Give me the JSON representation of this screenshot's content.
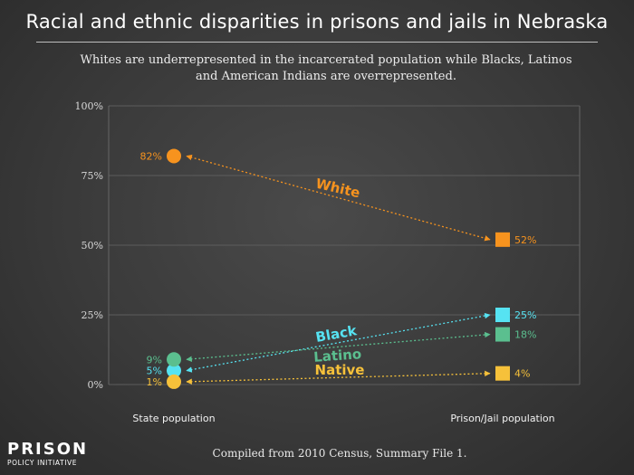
{
  "title": "Racial and ethnic disparities in prisons and jails in Nebraska",
  "subtitle": "Whites are underrepresented in the incarcerated population while Blacks, Latinos and American Indians are overrepresented.",
  "footer": "Compiled from 2010 Census, Summary File 1.",
  "logo": {
    "line1": "PRISON",
    "line2": "POLICY INITIATIVE"
  },
  "chart_data": {
    "type": "scatter",
    "categories": [
      "State population",
      "Prison/Jail population"
    ],
    "y_ticks": [
      "0%",
      "25%",
      "50%",
      "75%",
      "100%"
    ],
    "ylim": [
      0,
      100
    ],
    "grid": true,
    "series": [
      {
        "name": "White",
        "color": "#f7931e",
        "values": [
          82,
          52
        ],
        "labels": [
          "82%",
          "52%"
        ]
      },
      {
        "name": "Black",
        "color": "#56e3f2",
        "values": [
          5,
          25
        ],
        "labels": [
          "5%",
          "25%"
        ]
      },
      {
        "name": "Latino",
        "color": "#5bbf8f",
        "values": [
          9,
          18
        ],
        "labels": [
          "9%",
          "18%"
        ]
      },
      {
        "name": "Native",
        "color": "#f6c13a",
        "values": [
          1,
          4
        ],
        "labels": [
          "1%",
          "4%"
        ]
      }
    ]
  }
}
